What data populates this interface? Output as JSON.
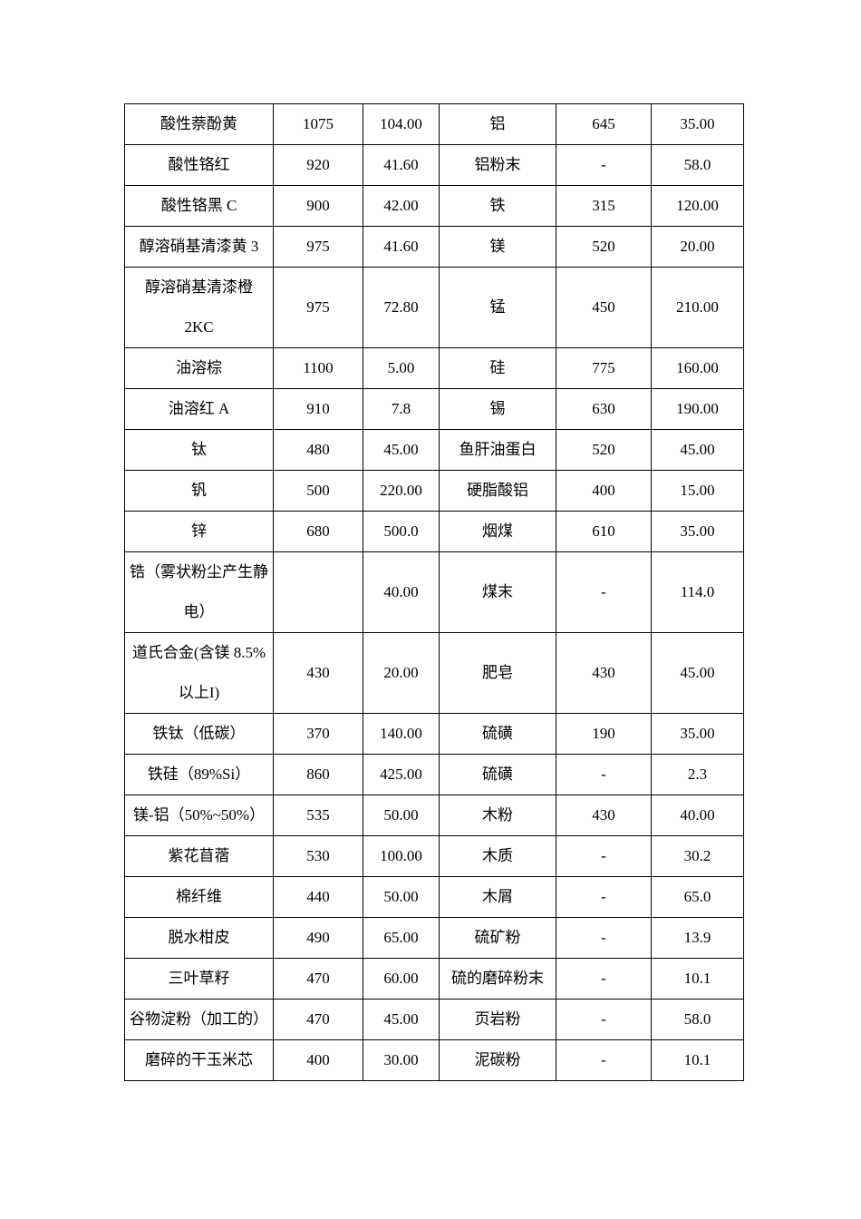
{
  "colors": {
    "background": "#ffffff",
    "text": "#000000",
    "border": "#000000"
  },
  "table": {
    "rows": [
      [
        "酸性萘酚黄",
        "1075",
        "104.00",
        "铝",
        "645",
        "35.00"
      ],
      [
        "酸性铬红",
        "920",
        "41.60",
        "铝粉末",
        "-",
        "58.0"
      ],
      [
        "酸性铬黑 C",
        "900",
        "42.00",
        "铁",
        "315",
        "120.00"
      ],
      [
        "醇溶硝基清漆黄 3",
        "975",
        "41.60",
        "镁",
        "520",
        "20.00"
      ],
      [
        "醇溶硝基清漆橙\n2KC",
        "975",
        "72.80",
        "锰",
        "450",
        "210.00"
      ],
      [
        "油溶棕",
        "1100",
        "5.00",
        "硅",
        "775",
        "160.00"
      ],
      [
        "油溶红 A",
        "910",
        "7.8",
        "锡",
        "630",
        "190.00"
      ],
      [
        "钛",
        "480",
        "45.00",
        "鱼肝油蛋白",
        "520",
        "45.00"
      ],
      [
        "钒",
        "500",
        "220.00",
        "硬脂酸铝",
        "400",
        "15.00"
      ],
      [
        "锌",
        "680",
        "500.0",
        "烟煤",
        "610",
        "35.00"
      ],
      [
        "锆（雾状粉尘产生静\n电）",
        "",
        "40.00",
        "煤末",
        "-",
        "114.0"
      ],
      [
        "道氏合金(含镁 8.5%\n以上I)",
        "430",
        "20.00",
        "肥皂",
        "430",
        "45.00"
      ],
      [
        "铁钛（低碳）",
        "370",
        "140.00",
        "硫磺",
        "190",
        "35.00"
      ],
      [
        "铁硅（89%Si）",
        "860",
        "425.00",
        "硫磺",
        "-",
        "2.3"
      ],
      [
        "镁-铝（50%~50%）",
        "535",
        "50.00",
        "木粉",
        "430",
        "40.00"
      ],
      [
        "紫花苜蓿",
        "530",
        "100.00",
        "木质",
        "-",
        "30.2"
      ],
      [
        "棉纤维",
        "440",
        "50.00",
        "木屑",
        "-",
        "65.0"
      ],
      [
        "脱水柑皮",
        "490",
        "65.00",
        "硫矿粉",
        "-",
        "13.9"
      ],
      [
        "三叶草籽",
        "470",
        "60.00",
        "硫的磨碎粉末",
        "-",
        "10.1"
      ],
      [
        "谷物淀粉（加工的）",
        "470",
        "45.00",
        "页岩粉",
        "-",
        "58.0"
      ],
      [
        "磨碎的干玉米芯",
        "400",
        "30.00",
        "泥碳粉",
        "-",
        "10.1"
      ]
    ]
  }
}
